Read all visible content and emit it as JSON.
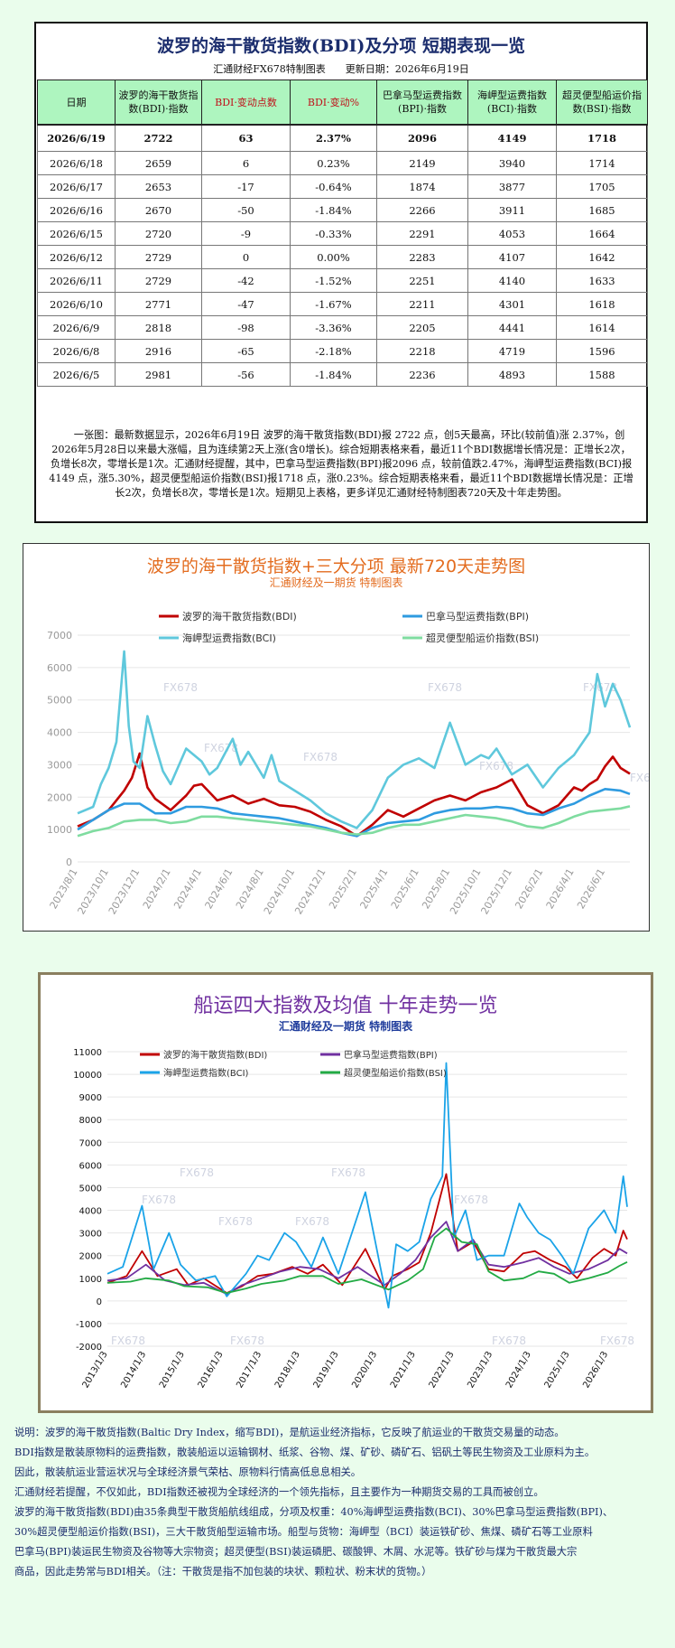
{
  "summary_panel": {
    "title": "波罗的海干散货指数(BDI)及分项 短期表现一览",
    "subtitle": "汇通财经FX678特制图表　　更新日期：2026年6月19日",
    "table": {
      "headers": [
        "日期",
        "波罗的海干散货指数(BDI)·指数",
        "BDI·变动点数",
        "BDI·变动%",
        "巴拿马型运费指数(BPI)·指数",
        "海岬型运费指数(BCI)·指数",
        "超灵便型船运价指数(BSI)·指数"
      ],
      "rows": [
        [
          "2026/6/19",
          "2722",
          "63",
          "2.37%",
          "2096",
          "4149",
          "1718"
        ],
        [
          "2026/6/18",
          "2659",
          "6",
          "0.23%",
          "2149",
          "3940",
          "1714"
        ],
        [
          "2026/6/17",
          "2653",
          "-17",
          "-0.64%",
          "1874",
          "3877",
          "1705"
        ],
        [
          "2026/6/16",
          "2670",
          "-50",
          "-1.84%",
          "2266",
          "3911",
          "1685"
        ],
        [
          "2026/6/15",
          "2720",
          "-9",
          "-0.33%",
          "2291",
          "4053",
          "1664"
        ],
        [
          "2026/6/12",
          "2729",
          "0",
          "0.00%",
          "2283",
          "4107",
          "1642"
        ],
        [
          "2026/6/11",
          "2729",
          "-42",
          "-1.52%",
          "2251",
          "4140",
          "1633"
        ],
        [
          "2026/6/10",
          "2771",
          "-47",
          "-1.67%",
          "2211",
          "4301",
          "1618"
        ],
        [
          "2026/6/9",
          "2818",
          "-98",
          "-3.36%",
          "2205",
          "4441",
          "1614"
        ],
        [
          "2026/6/8",
          "2916",
          "-65",
          "-2.18%",
          "2218",
          "4719",
          "1596"
        ],
        [
          "2026/6/5",
          "2981",
          "-56",
          "-1.84%",
          "2236",
          "4893",
          "1588"
        ]
      ]
    },
    "note": "一张图：最新数据显示，2026年6月19日 波罗的海干散货指数(BDI)报 2722 点，创5天最高，环比(较前值)涨 2.37%，创2026年5月28日以来最大涨幅，且为连续第2天上涨(含0增长)。综合短期表格来看，最近11个BDI数据增长情况是：正增长2次，负增长8次，零增长是1次。汇通财经提醒，其中，巴拿马型运费指数(BPI)报2096 点，较前值跌2.47%，海岬型运费指数(BCI)报4149 点，涨5.30%，超灵便型船运价指数(BSI)报1718 点，涨0.23%。综合短期表格来看，最近11个BDI数据增长情况是：正增长2次，负增长8次，零增长是1次。短期见上表格，更多详见汇通财经特制图表720天及十年走势图。"
  },
  "watermark": "FX678",
  "chart_data": [
    {
      "type": "line",
      "title": "波罗的海干散货指数+三大分项  最新720天走势图",
      "subtitle": "汇通财经及一期货 特制图表",
      "legend_position": "top",
      "grid": true,
      "ylim": [
        0,
        7000
      ],
      "yticks": [
        "0",
        "1000",
        "2000",
        "3000",
        "4000",
        "5000",
        "6000",
        "7000"
      ],
      "x_tick_labels": [
        "2023/8/1",
        "2023/10/1",
        "2023/12/1",
        "2024/2/1",
        "2024/4/1",
        "2024/6/1",
        "2024/8/1",
        "2024/10/1",
        "2024/12/1",
        "2025/2/1",
        "2025/4/1",
        "2025/6/1",
        "2025/8/1",
        "2025/10/1",
        "2025/12/1",
        "2026/2/1",
        "2026/4/1",
        "2026/6/1"
      ],
      "x_label_positions": [
        0,
        2,
        4,
        6,
        8,
        10,
        12,
        14,
        16,
        18,
        20,
        22,
        24,
        26,
        28,
        30,
        32,
        34
      ],
      "x_span": 35.6,
      "series": [
        {
          "name": "波罗的海干散货指数(BDI)",
          "color": "#c00000",
          "x": [
            0,
            1,
            2,
            3,
            3.5,
            4,
            4.5,
            5,
            6,
            7,
            7.5,
            8,
            9,
            10,
            11,
            12,
            13,
            14,
            15,
            16,
            17,
            18,
            19,
            20,
            21,
            22,
            23,
            24,
            25,
            26,
            27,
            28,
            29,
            30,
            31,
            32,
            32.5,
            33,
            33.5,
            34,
            34.5,
            35,
            35.6
          ],
          "y": [
            1100,
            1300,
            1600,
            2200,
            2600,
            3350,
            2300,
            1950,
            1600,
            2050,
            2350,
            2400,
            1900,
            2050,
            1800,
            1950,
            1750,
            1700,
            1550,
            1300,
            1100,
            800,
            1150,
            1600,
            1400,
            1650,
            1900,
            2050,
            1900,
            2150,
            2300,
            2550,
            1750,
            1500,
            1750,
            2300,
            2200,
            2400,
            2550,
            2950,
            3250,
            2900,
            2722
          ]
        },
        {
          "name": "巴拿马型运费指数(BPI)",
          "color": "#2e9be0",
          "x": [
            0,
            1,
            2,
            3,
            4,
            5,
            6,
            7,
            8,
            9,
            10,
            11,
            12,
            13,
            14,
            15,
            16,
            17,
            18,
            19,
            20,
            21,
            22,
            23,
            24,
            25,
            26,
            27,
            28,
            29,
            30,
            31,
            32,
            33,
            34,
            35,
            35.6
          ],
          "y": [
            1000,
            1300,
            1600,
            1800,
            1800,
            1500,
            1500,
            1700,
            1700,
            1650,
            1500,
            1450,
            1400,
            1350,
            1250,
            1150,
            1050,
            900,
            800,
            1050,
            1200,
            1250,
            1300,
            1500,
            1600,
            1650,
            1650,
            1700,
            1650,
            1500,
            1450,
            1650,
            1800,
            2050,
            2250,
            2200,
            2096
          ]
        },
        {
          "name": "海岬型运费指数(BCI)",
          "color": "#5fc8dc",
          "x": [
            0,
            1,
            1.5,
            2,
            2.5,
            3,
            3.3,
            3.6,
            4,
            4.5,
            5,
            5.5,
            6,
            7,
            8,
            8.5,
            9,
            10,
            10.5,
            11,
            12,
            12.5,
            13,
            14,
            15,
            16,
            17,
            18,
            19,
            20,
            21,
            22,
            23,
            24,
            25,
            26,
            26.5,
            27,
            28,
            29,
            30,
            31,
            32,
            33,
            33.5,
            34,
            34.5,
            35,
            35.6
          ],
          "y": [
            1500,
            1700,
            2400,
            2900,
            3700,
            6500,
            4200,
            3100,
            2900,
            4500,
            3600,
            2800,
            2400,
            3500,
            3100,
            2700,
            2900,
            3800,
            3000,
            3400,
            2600,
            3300,
            2500,
            2200,
            1900,
            1500,
            1250,
            1050,
            1600,
            2600,
            3000,
            3200,
            2900,
            4300,
            3000,
            3300,
            3200,
            3500,
            2700,
            3000,
            2300,
            2900,
            3300,
            4000,
            5800,
            4800,
            5500,
            5000,
            4149
          ]
        },
        {
          "name": "超灵便型船运价指数(BSI)",
          "color": "#7fdca0",
          "x": [
            0,
            1,
            2,
            3,
            4,
            5,
            6,
            7,
            8,
            9,
            10,
            11,
            12,
            13,
            14,
            15,
            16,
            17,
            18,
            19,
            20,
            21,
            22,
            23,
            24,
            25,
            26,
            27,
            28,
            29,
            30,
            31,
            32,
            33,
            34,
            35,
            35.6
          ],
          "y": [
            800,
            950,
            1050,
            1250,
            1300,
            1300,
            1200,
            1250,
            1400,
            1400,
            1350,
            1300,
            1250,
            1200,
            1150,
            1100,
            1000,
            900,
            850,
            900,
            1050,
            1150,
            1150,
            1250,
            1350,
            1450,
            1400,
            1350,
            1250,
            1100,
            1050,
            1200,
            1400,
            1550,
            1600,
            1650,
            1718
          ]
        }
      ]
    },
    {
      "type": "line",
      "title": "船运四大指数及均值 十年走势一览",
      "subtitle": "汇通财经及一期货 特制图表",
      "legend_position": "top",
      "grid": true,
      "ylim": [
        -2000,
        11000
      ],
      "yticks": [
        "-2000",
        "-1000",
        "0",
        "1000",
        "2000",
        "3000",
        "4000",
        "5000",
        "6000",
        "7000",
        "8000",
        "9000",
        "10000",
        "11000"
      ],
      "x_tick_labels": [
        "2013/1/3",
        "2014/1/3",
        "2015/1/3",
        "2016/1/3",
        "2017/1/3",
        "2018/1/3",
        "2019/1/3",
        "2020/1/3",
        "2021/1/3",
        "2022/1/3",
        "2023/1/3",
        "2024/1/3",
        "2025/1/3",
        "2026/1/3"
      ],
      "x_label_positions": [
        2013,
        2014,
        2015,
        2016,
        2017,
        2018,
        2019,
        2020,
        2021,
        2022,
        2023,
        2024,
        2025,
        2026
      ],
      "x_range": [
        2013,
        2026.5
      ],
      "series": [
        {
          "name": "波罗的海干散货指数(BDI)",
          "color": "#c00000",
          "x": [
            2013,
            2013.5,
            2013.9,
            2014.3,
            2014.8,
            2015.1,
            2015.5,
            2016.1,
            2016.5,
            2016.9,
            2017.3,
            2017.8,
            2018.2,
            2018.6,
            2019.1,
            2019.7,
            2020.2,
            2020.4,
            2020.8,
            2021.1,
            2021.4,
            2021.8,
            2022.1,
            2022.5,
            2022.9,
            2023.3,
            2023.8,
            2024.1,
            2024.5,
            2024.9,
            2025.2,
            2025.6,
            2025.9,
            2026.2,
            2026.4,
            2026.5
          ],
          "y": [
            800,
            1100,
            2200,
            1100,
            1400,
            700,
            1000,
            350,
            650,
            1100,
            1200,
            1500,
            1200,
            1600,
            700,
            2300,
            500,
            1100,
            1400,
            1700,
            3000,
            5600,
            2200,
            2600,
            1400,
            1300,
            2100,
            2200,
            1800,
            1500,
            1000,
            1900,
            2300,
            2000,
            3100,
            2722
          ]
        },
        {
          "name": "巴拿马型运费指数(BPI)",
          "color": "#7030a0",
          "x": [
            2013,
            2013.5,
            2014,
            2014.5,
            2015,
            2015.5,
            2016.1,
            2016.5,
            2017,
            2017.5,
            2018,
            2018.5,
            2019,
            2019.5,
            2020.2,
            2020.6,
            2021,
            2021.4,
            2021.8,
            2022.1,
            2022.5,
            2022.9,
            2023.3,
            2023.8,
            2024.2,
            2024.6,
            2025,
            2025.5,
            2026,
            2026.3,
            2026.5
          ],
          "y": [
            900,
            1000,
            1600,
            900,
            700,
            800,
            300,
            700,
            1000,
            1300,
            1500,
            1400,
            1000,
            1500,
            700,
            1200,
            1800,
            2800,
            3500,
            2200,
            2700,
            1600,
            1500,
            1700,
            1900,
            1500,
            1200,
            1400,
            1800,
            2300,
            2096
          ]
        },
        {
          "name": "海岬型运费指数(BCI)",
          "color": "#1aa3e8",
          "x": [
            2013,
            2013.4,
            2013.9,
            2014.2,
            2014.6,
            2014.9,
            2015.3,
            2015.8,
            2016.1,
            2016.6,
            2016.9,
            2017.2,
            2017.6,
            2017.9,
            2018.3,
            2018.6,
            2019,
            2019.7,
            2020.3,
            2020.5,
            2020.8,
            2021.1,
            2021.4,
            2021.7,
            2021.8,
            2022,
            2022.3,
            2022.6,
            2022.9,
            2023.3,
            2023.7,
            2023.9,
            2024.2,
            2024.5,
            2024.8,
            2025.1,
            2025.5,
            2025.9,
            2026.2,
            2026.4,
            2026.5
          ],
          "y": [
            1200,
            1500,
            4200,
            1400,
            3000,
            1600,
            900,
            1100,
            200,
            1200,
            2000,
            1800,
            3000,
            2600,
            1500,
            2800,
            1200,
            4800,
            -300,
            2500,
            2200,
            2600,
            4500,
            5500,
            10500,
            2800,
            4000,
            1800,
            2000,
            2000,
            4300,
            3700,
            3000,
            2700,
            2000,
            1200,
            3200,
            4000,
            3000,
            5500,
            4149
          ]
        },
        {
          "name": "超灵便型船运价指数(BSI)",
          "color": "#22aa44",
          "x": [
            2013,
            2013.6,
            2014,
            2014.6,
            2015,
            2015.6,
            2016.1,
            2016.6,
            2017,
            2017.6,
            2018,
            2018.6,
            2019,
            2019.6,
            2020.3,
            2020.8,
            2021.2,
            2021.5,
            2021.8,
            2022.2,
            2022.6,
            2022.9,
            2023.3,
            2023.8,
            2024.2,
            2024.6,
            2025,
            2025.5,
            2026,
            2026.3,
            2026.5
          ],
          "y": [
            800,
            850,
            1000,
            900,
            650,
            600,
            350,
            550,
            750,
            900,
            1100,
            1100,
            750,
            950,
            500,
            900,
            1400,
            2800,
            3200,
            2600,
            2500,
            1300,
            900,
            1000,
            1300,
            1200,
            800,
            1000,
            1250,
            1550,
            1718
          ]
        }
      ]
    }
  ],
  "description": [
    "说明：波罗的海干散货指数(Baltic Dry Index，缩写BDI)，是航运业经济指标，它反映了航运业的干散货交易量的动态。",
    "BDI指数是散装原物料的运费指数，散装船运以运输钢材、纸浆、谷物、煤、矿砂、磷矿石、铝矾土等民生物资及工业原料为主。",
    "因此，散装航运业营运状况与全球经济景气荣枯、原物料行情高低息息相关。",
    "汇通财经若提醒，不仅如此，BDI指数还被视为全球经济的一个领先指标，且主要作为一种期货交易的工具而被创立。",
    "波罗的海干散货指数(BDI)由35条典型干散货船航线组成，分项及权重：40%海岬型运费指数(BCI)、30%巴拿马型运费指数(BPI)、",
    "30%超灵便型船运价指数(BSI)，三大干散货船型运输市场。船型与货物：海岬型（BCI）装运铁矿砂、焦煤、磷矿石等工业原料",
    "巴拿马(BPI)装运民生物资及谷物等大宗物资；超灵便型(BSI)装运磷肥、碳酸钾、木屑、水泥等。铁矿砂与煤为干散货最大宗",
    "商品，因此走势常与BDI相关。（注：干散货是指不加包装的块状、颗粒状、粉末状的货物。）"
  ]
}
